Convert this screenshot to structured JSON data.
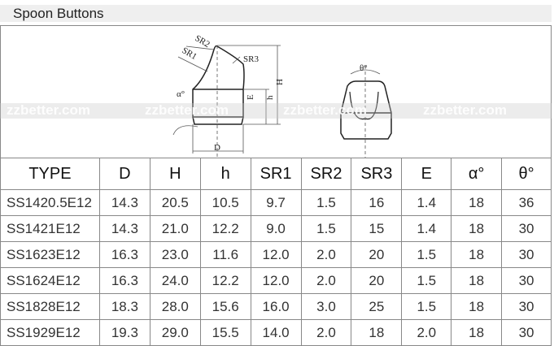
{
  "title": "Spoon Buttons",
  "watermark": "zzbetter.com",
  "diagram": {
    "labels": {
      "sr1": "SR1",
      "sr2": "SR2",
      "sr3": "SR3",
      "H": "H",
      "h": "h",
      "E": "E",
      "D": "D",
      "alpha": "α°",
      "theta": "θ°"
    }
  },
  "table": {
    "headers": [
      "TYPE",
      "D",
      "H",
      "h",
      "SR1",
      "SR2",
      "SR3",
      "E",
      "α°",
      "θ°"
    ],
    "rows": [
      [
        "SS1420.5E12",
        "14.3",
        "20.5",
        "10.5",
        "9.7",
        "1.5",
        "16",
        "1.4",
        "18",
        "36"
      ],
      [
        "SS1421E12",
        "14.3",
        "21.0",
        "12.2",
        "9.0",
        "1.5",
        "15",
        "1.4",
        "18",
        "30"
      ],
      [
        "SS1623E12",
        "16.3",
        "23.0",
        "11.6",
        "12.0",
        "2.0",
        "20",
        "1.5",
        "18",
        "30"
      ],
      [
        "SS1624E12",
        "16.3",
        "24.0",
        "12.2",
        "12.0",
        "2.0",
        "20",
        "1.5",
        "18",
        "30"
      ],
      [
        "SS1828E12",
        "18.3",
        "28.0",
        "15.6",
        "16.0",
        "3.0",
        "25",
        "1.5",
        "18",
        "30"
      ],
      [
        "SS1929E12",
        "19.3",
        "29.0",
        "15.5",
        "14.0",
        "2.0",
        "18",
        "2.0",
        "18",
        "30"
      ]
    ]
  }
}
